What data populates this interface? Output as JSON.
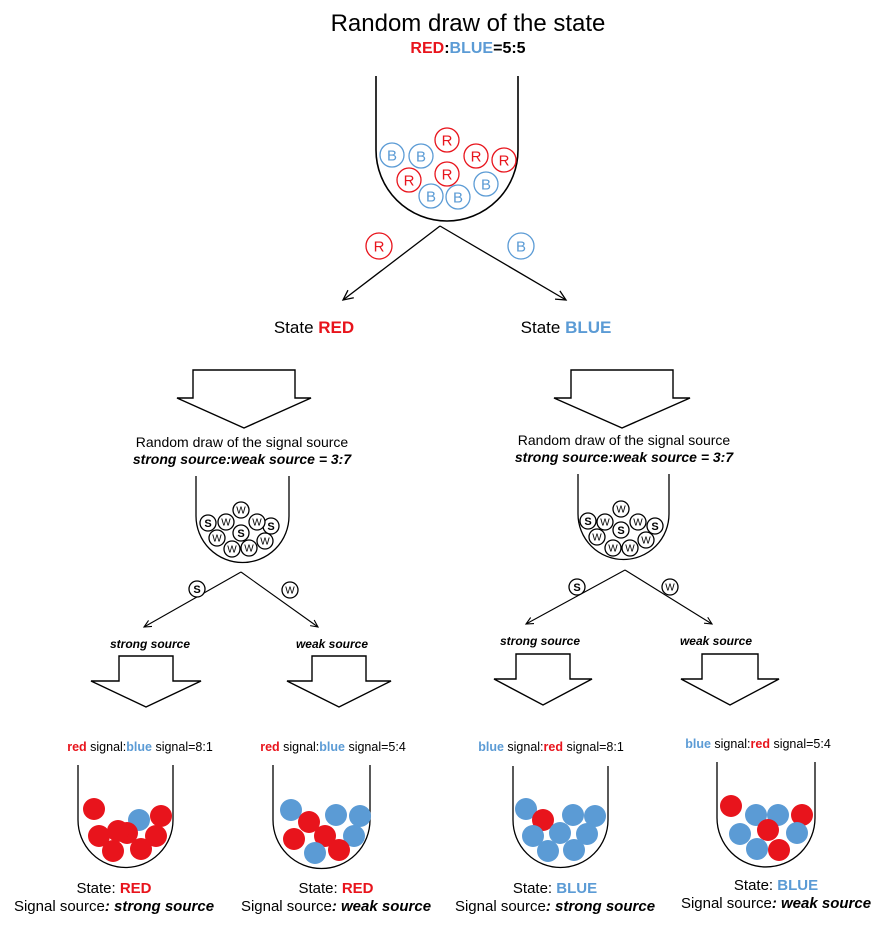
{
  "title": "Random draw of the state",
  "state_ratio": {
    "red": "RED",
    "colon": ":",
    "blue": "BLUE",
    "suffix": "=5:5"
  },
  "branch_tokens": {
    "red": "R",
    "blue": "B"
  },
  "states": {
    "red": {
      "prefix": "State ",
      "name": "RED"
    },
    "blue": {
      "prefix": "State ",
      "name": "BLUE"
    }
  },
  "signal_draw": {
    "title": "Random draw of the signal source",
    "ratio": "strong source:weak source = 3:7",
    "token_strong": "S",
    "token_weak": "W",
    "strong_label": "strong source",
    "weak_label": "weak source"
  },
  "urn_tokens": {
    "state_urn": [
      "R",
      "R",
      "R",
      "R",
      "R",
      "B",
      "B",
      "B",
      "B",
      "B"
    ],
    "signal_urn_left": [
      "S",
      "S",
      "S",
      "W",
      "W",
      "W",
      "W",
      "W",
      "W",
      "W"
    ],
    "signal_urn_right": [
      "S",
      "S",
      "S",
      "W",
      "W",
      "W",
      "W",
      "W",
      "W",
      "W"
    ]
  },
  "outcomes": [
    {
      "sig_a": "red",
      "sig_mid": " signal:",
      "sig_b": "blue",
      "sig_end": " signal=8:1",
      "state_prefix": "State: ",
      "state": "RED",
      "source_prefix": "Signal source",
      "source": ": strong source",
      "balls": {
        "red": 8,
        "blue": 1
      }
    },
    {
      "sig_a": "red",
      "sig_mid": " signal:",
      "sig_b": "blue",
      "sig_end": " signal=5:4",
      "state_prefix": "State: ",
      "state": "RED",
      "source_prefix": "Signal source",
      "source": ": weak source",
      "balls": {
        "red": 5,
        "blue": 4
      }
    },
    {
      "sig_a": "blue",
      "sig_mid": " signal:",
      "sig_b": "red",
      "sig_end": " signal=8:1",
      "state_prefix": "State: ",
      "state": "BLUE",
      "source_prefix": "Signal source",
      "source": ": strong source",
      "balls": {
        "red": 1,
        "blue": 8
      }
    },
    {
      "sig_a": "blue",
      "sig_mid": " signal:",
      "sig_b": "red",
      "sig_end": " signal=5:4",
      "state_prefix": "State: ",
      "state": "BLUE",
      "source_prefix": "Signal source",
      "source": ": weak source",
      "balls": {
        "red": 4,
        "blue": 5
      }
    }
  ],
  "colors": {
    "red": "#e8141c",
    "blue": "#5b9bd5",
    "ink": "#000000"
  }
}
